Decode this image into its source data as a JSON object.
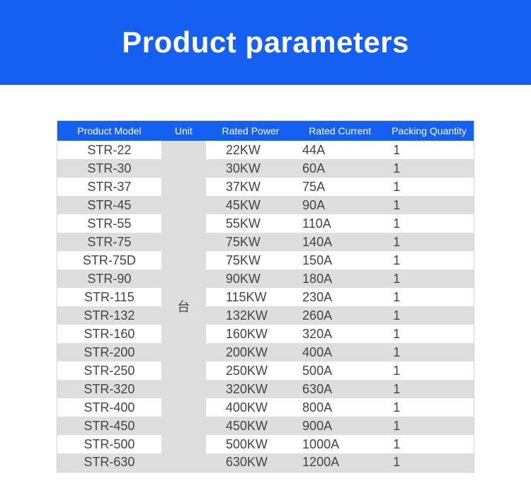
{
  "banner": {
    "title": "Product parameters",
    "background_color": "#1660f1",
    "title_color": "#ffffff",
    "title_fontsize": 42
  },
  "table": {
    "header_bg": "#1660f1",
    "header_color": "#ffffff",
    "row_even_bg": "#ffffff",
    "row_odd_bg": "#dededf",
    "unit_cell_bg": "#dededf",
    "border_color": "#d0d0d0",
    "text_color": "#444444",
    "columns": [
      "Product Model",
      "Unit",
      "Rated Power",
      "Rated Current",
      "Packing Quantity"
    ],
    "unit_value": "台",
    "rows": [
      {
        "model": "STR-22",
        "power": "22KW",
        "current": "44A",
        "qty": "1"
      },
      {
        "model": "STR-30",
        "power": "30KW",
        "current": "60A",
        "qty": "1"
      },
      {
        "model": "STR-37",
        "power": "37KW",
        "current": "75A",
        "qty": "1"
      },
      {
        "model": "STR-45",
        "power": "45KW",
        "current": "90A",
        "qty": "1"
      },
      {
        "model": "STR-55",
        "power": "55KW",
        "current": "110A",
        "qty": "1"
      },
      {
        "model": "STR-75",
        "power": "75KW",
        "current": "140A",
        "qty": "1"
      },
      {
        "model": "STR-75D",
        "power": "75KW",
        "current": "150A",
        "qty": "1"
      },
      {
        "model": "STR-90",
        "power": "90KW",
        "current": "180A",
        "qty": "1"
      },
      {
        "model": "STR-115",
        "power": "115KW",
        "current": "230A",
        "qty": "1"
      },
      {
        "model": "STR-132",
        "power": "132KW",
        "current": "260A",
        "qty": "1"
      },
      {
        "model": "STR-160",
        "power": "160KW",
        "current": "320A",
        "qty": "1"
      },
      {
        "model": "STR-200",
        "power": "200KW",
        "current": "400A",
        "qty": "1"
      },
      {
        "model": "STR-250",
        "power": "250KW",
        "current": "500A",
        "qty": "1"
      },
      {
        "model": "STR-320",
        "power": "320KW",
        "current": "630A",
        "qty": "1"
      },
      {
        "model": "STR-400",
        "power": "400KW",
        "current": "800A",
        "qty": "1"
      },
      {
        "model": "STR-450",
        "power": "450KW",
        "current": "900A",
        "qty": "1"
      },
      {
        "model": "STR-500",
        "power": "500KW",
        "current": "1000A",
        "qty": "1"
      },
      {
        "model": "STR-630",
        "power": "630KW",
        "current": "1200A",
        "qty": "1"
      }
    ]
  }
}
